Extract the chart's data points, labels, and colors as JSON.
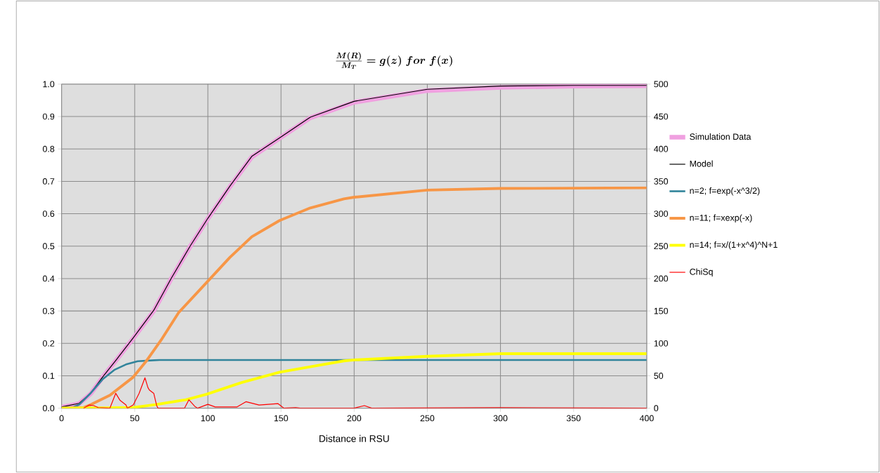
{
  "chart_data": {
    "type": "line",
    "title": "\\frac{M(R)}{M_T}=g(z)\\ for\\ f(x)",
    "xlabel": "Distance in RSU",
    "xlim": [
      0,
      400
    ],
    "xticks": [
      0,
      50,
      100,
      150,
      200,
      250,
      300,
      350,
      400
    ],
    "ylim": [
      0,
      1
    ],
    "yticks": [
      {
        "value": 0,
        "label": "0.0"
      },
      0.1,
      0.2,
      0.3,
      0.4,
      0.5,
      0.6,
      0.7,
      0.8,
      0.9,
      {
        "value": 1,
        "label": "1.0"
      }
    ],
    "y2lim": [
      0,
      500
    ],
    "y2ticks": [
      0,
      50,
      100,
      150,
      200,
      250,
      300,
      350,
      400,
      450,
      500
    ],
    "grid": true,
    "legend": "right",
    "marker": "none",
    "line_style": "solid",
    "series": [
      {
        "name": "Simulation Data",
        "color": "#f0a0e0",
        "x": [
          0,
          12,
          20,
          28,
          38,
          49,
          63,
          75,
          88,
          100,
          115,
          130,
          149,
          170,
          200,
          250,
          300,
          350,
          400
        ],
        "values": [
          0.003,
          0.014,
          0.045,
          0.095,
          0.152,
          0.216,
          0.3,
          0.4,
          0.5,
          0.585,
          0.683,
          0.775,
          0.833,
          0.896,
          0.944,
          0.98,
          0.99,
          0.994,
          0.995
        ]
      },
      {
        "name": "Model",
        "color": "#000000",
        "x": [
          0,
          12,
          20,
          28,
          38,
          49,
          63,
          75,
          88,
          100,
          115,
          130,
          149,
          170,
          200,
          250,
          300,
          350,
          400
        ],
        "values": [
          0.004,
          0.015,
          0.047,
          0.096,
          0.153,
          0.217,
          0.302,
          0.401,
          0.501,
          0.586,
          0.685,
          0.777,
          0.834,
          0.898,
          0.947,
          0.984,
          0.994,
          0.996,
          0.996
        ]
      },
      {
        "name": "n=2;  f=exp(-x^3/2)",
        "color": "#31849b",
        "x": [
          0,
          8,
          12,
          20,
          28,
          36,
          44,
          52,
          67,
          400
        ],
        "values": [
          0,
          0.003,
          0.011,
          0.047,
          0.089,
          0.118,
          0.135,
          0.145,
          0.149,
          0.149
        ]
      },
      {
        "name": "n=11; f=xexp(-x)",
        "color": "#f79646",
        "x": [
          0,
          15,
          20,
          33,
          49,
          58,
          68,
          80,
          99,
          115,
          130,
          149,
          170,
          193,
          200,
          250,
          300,
          400
        ],
        "values": [
          0,
          0.002,
          0.011,
          0.04,
          0.096,
          0.146,
          0.21,
          0.295,
          0.387,
          0.465,
          0.529,
          0.579,
          0.618,
          0.646,
          0.651,
          0.673,
          0.678,
          0.68
        ]
      },
      {
        "name": "n=14; f=x/(1+x^4)^N+1",
        "color": "#ffff00",
        "x": [
          0,
          30,
          49,
          64,
          85,
          99,
          123,
          149,
          170,
          193,
          200,
          250,
          300,
          400
        ],
        "values": [
          0,
          0.001,
          0.002,
          0.011,
          0.026,
          0.043,
          0.079,
          0.111,
          0.128,
          0.146,
          0.149,
          0.16,
          0.168,
          0.168
        ]
      },
      {
        "name": "ChiSq",
        "color": "#ff0000",
        "axis": "y2",
        "x": [
          15,
          19,
          22,
          25,
          33,
          37,
          40,
          44,
          45,
          49,
          53,
          57,
          59,
          60,
          63,
          65,
          66,
          84,
          87,
          91,
          93,
          100,
          105,
          120,
          126,
          135,
          148,
          152,
          160,
          163,
          200,
          207,
          212,
          300,
          400
        ],
        "values": [
          0,
          5,
          4,
          1,
          0,
          23,
          12,
          5,
          0,
          5,
          23,
          47,
          32,
          28,
          23,
          4,
          0,
          0,
          13,
          3,
          0,
          6,
          2,
          2,
          10,
          5,
          7,
          0,
          1,
          0,
          0,
          4,
          0,
          1,
          0
        ]
      }
    ]
  }
}
